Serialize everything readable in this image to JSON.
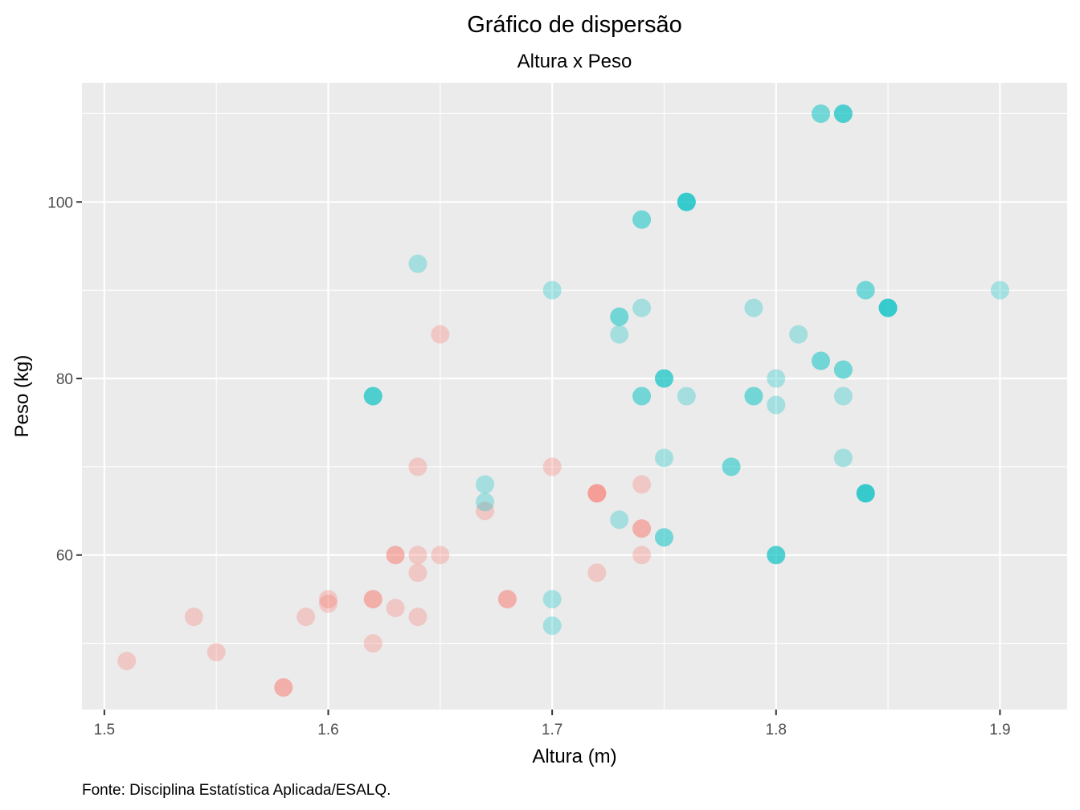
{
  "chart_data": {
    "type": "scatter",
    "title": "Gráfico de dispersão",
    "subtitle": "Altura x Peso",
    "xlabel": "Altura (m)",
    "ylabel": "Peso (kg)",
    "caption": "Fonte: Disciplina Estatística Aplicada/ESALQ.",
    "xlim": [
      1.49,
      1.93
    ],
    "ylim": [
      42.5,
      113.5
    ],
    "x_ticks": [
      1.5,
      1.6,
      1.7,
      1.8,
      1.9
    ],
    "x_tick_labels": [
      "1.5",
      "1.6",
      "1.7",
      "1.8",
      "1.9"
    ],
    "y_ticks": [
      60,
      80,
      100
    ],
    "y_tick_labels": [
      "60",
      "80",
      "100"
    ],
    "x_minor": [
      1.55,
      1.65,
      1.75,
      1.85
    ],
    "y_minor": [
      50,
      70,
      90,
      110
    ],
    "grid": true,
    "legend": "none",
    "colors": {
      "group_a": "#f8766d",
      "group_b": "#00bfc4",
      "panel": "#ebebeb"
    },
    "point_alpha": 0.3,
    "series": [
      {
        "color": "#f8766d",
        "points": [
          {
            "x": 1.51,
            "y": 48
          },
          {
            "x": 1.54,
            "y": 53
          },
          {
            "x": 1.55,
            "y": 49
          },
          {
            "x": 1.58,
            "y": 45
          },
          {
            "x": 1.58,
            "y": 45
          },
          {
            "x": 1.59,
            "y": 53
          },
          {
            "x": 1.6,
            "y": 55
          },
          {
            "x": 1.6,
            "y": 54.5
          },
          {
            "x": 1.62,
            "y": 55
          },
          {
            "x": 1.62,
            "y": 55
          },
          {
            "x": 1.62,
            "y": 50
          },
          {
            "x": 1.63,
            "y": 54
          },
          {
            "x": 1.63,
            "y": 60
          },
          {
            "x": 1.63,
            "y": 60
          },
          {
            "x": 1.64,
            "y": 53
          },
          {
            "x": 1.64,
            "y": 58
          },
          {
            "x": 1.64,
            "y": 60
          },
          {
            "x": 1.64,
            "y": 70
          },
          {
            "x": 1.65,
            "y": 60
          },
          {
            "x": 1.65,
            "y": 85
          },
          {
            "x": 1.67,
            "y": 65
          },
          {
            "x": 1.68,
            "y": 55
          },
          {
            "x": 1.68,
            "y": 55
          },
          {
            "x": 1.7,
            "y": 70
          },
          {
            "x": 1.72,
            "y": 58
          },
          {
            "x": 1.72,
            "y": 67
          },
          {
            "x": 1.72,
            "y": 67
          },
          {
            "x": 1.72,
            "y": 67
          },
          {
            "x": 1.74,
            "y": 63
          },
          {
            "x": 1.74,
            "y": 63
          },
          {
            "x": 1.74,
            "y": 68
          },
          {
            "x": 1.74,
            "y": 60
          }
        ]
      },
      {
        "color": "#00bfc4",
        "points": [
          {
            "x": 1.62,
            "y": 78
          },
          {
            "x": 1.62,
            "y": 78
          },
          {
            "x": 1.62,
            "y": 78
          },
          {
            "x": 1.64,
            "y": 93
          },
          {
            "x": 1.67,
            "y": 68
          },
          {
            "x": 1.67,
            "y": 66
          },
          {
            "x": 1.7,
            "y": 90
          },
          {
            "x": 1.7,
            "y": 55
          },
          {
            "x": 1.7,
            "y": 52
          },
          {
            "x": 1.73,
            "y": 87
          },
          {
            "x": 1.73,
            "y": 87
          },
          {
            "x": 1.73,
            "y": 85
          },
          {
            "x": 1.73,
            "y": 64
          },
          {
            "x": 1.74,
            "y": 98
          },
          {
            "x": 1.74,
            "y": 98
          },
          {
            "x": 1.74,
            "y": 88
          },
          {
            "x": 1.74,
            "y": 78
          },
          {
            "x": 1.74,
            "y": 78
          },
          {
            "x": 1.75,
            "y": 80
          },
          {
            "x": 1.75,
            "y": 80
          },
          {
            "x": 1.75,
            "y": 80
          },
          {
            "x": 1.75,
            "y": 71
          },
          {
            "x": 1.75,
            "y": 62
          },
          {
            "x": 1.75,
            "y": 62
          },
          {
            "x": 1.76,
            "y": 100
          },
          {
            "x": 1.76,
            "y": 100
          },
          {
            "x": 1.76,
            "y": 100
          },
          {
            "x": 1.76,
            "y": 100
          },
          {
            "x": 1.76,
            "y": 78
          },
          {
            "x": 1.78,
            "y": 70
          },
          {
            "x": 1.78,
            "y": 70
          },
          {
            "x": 1.79,
            "y": 88
          },
          {
            "x": 1.79,
            "y": 78
          },
          {
            "x": 1.79,
            "y": 78
          },
          {
            "x": 1.8,
            "y": 80
          },
          {
            "x": 1.8,
            "y": 77
          },
          {
            "x": 1.8,
            "y": 60
          },
          {
            "x": 1.8,
            "y": 60
          },
          {
            "x": 1.8,
            "y": 60
          },
          {
            "x": 1.81,
            "y": 85
          },
          {
            "x": 1.82,
            "y": 110
          },
          {
            "x": 1.82,
            "y": 110
          },
          {
            "x": 1.82,
            "y": 82
          },
          {
            "x": 1.82,
            "y": 82
          },
          {
            "x": 1.83,
            "y": 110
          },
          {
            "x": 1.83,
            "y": 110
          },
          {
            "x": 1.83,
            "y": 110
          },
          {
            "x": 1.83,
            "y": 81
          },
          {
            "x": 1.83,
            "y": 81
          },
          {
            "x": 1.83,
            "y": 78
          },
          {
            "x": 1.83,
            "y": 71
          },
          {
            "x": 1.84,
            "y": 90
          },
          {
            "x": 1.84,
            "y": 90
          },
          {
            "x": 1.84,
            "y": 67
          },
          {
            "x": 1.84,
            "y": 67
          },
          {
            "x": 1.84,
            "y": 67
          },
          {
            "x": 1.84,
            "y": 67
          },
          {
            "x": 1.85,
            "y": 88
          },
          {
            "x": 1.85,
            "y": 88
          },
          {
            "x": 1.85,
            "y": 88
          },
          {
            "x": 1.85,
            "y": 88
          },
          {
            "x": 1.9,
            "y": 90
          }
        ]
      }
    ]
  }
}
